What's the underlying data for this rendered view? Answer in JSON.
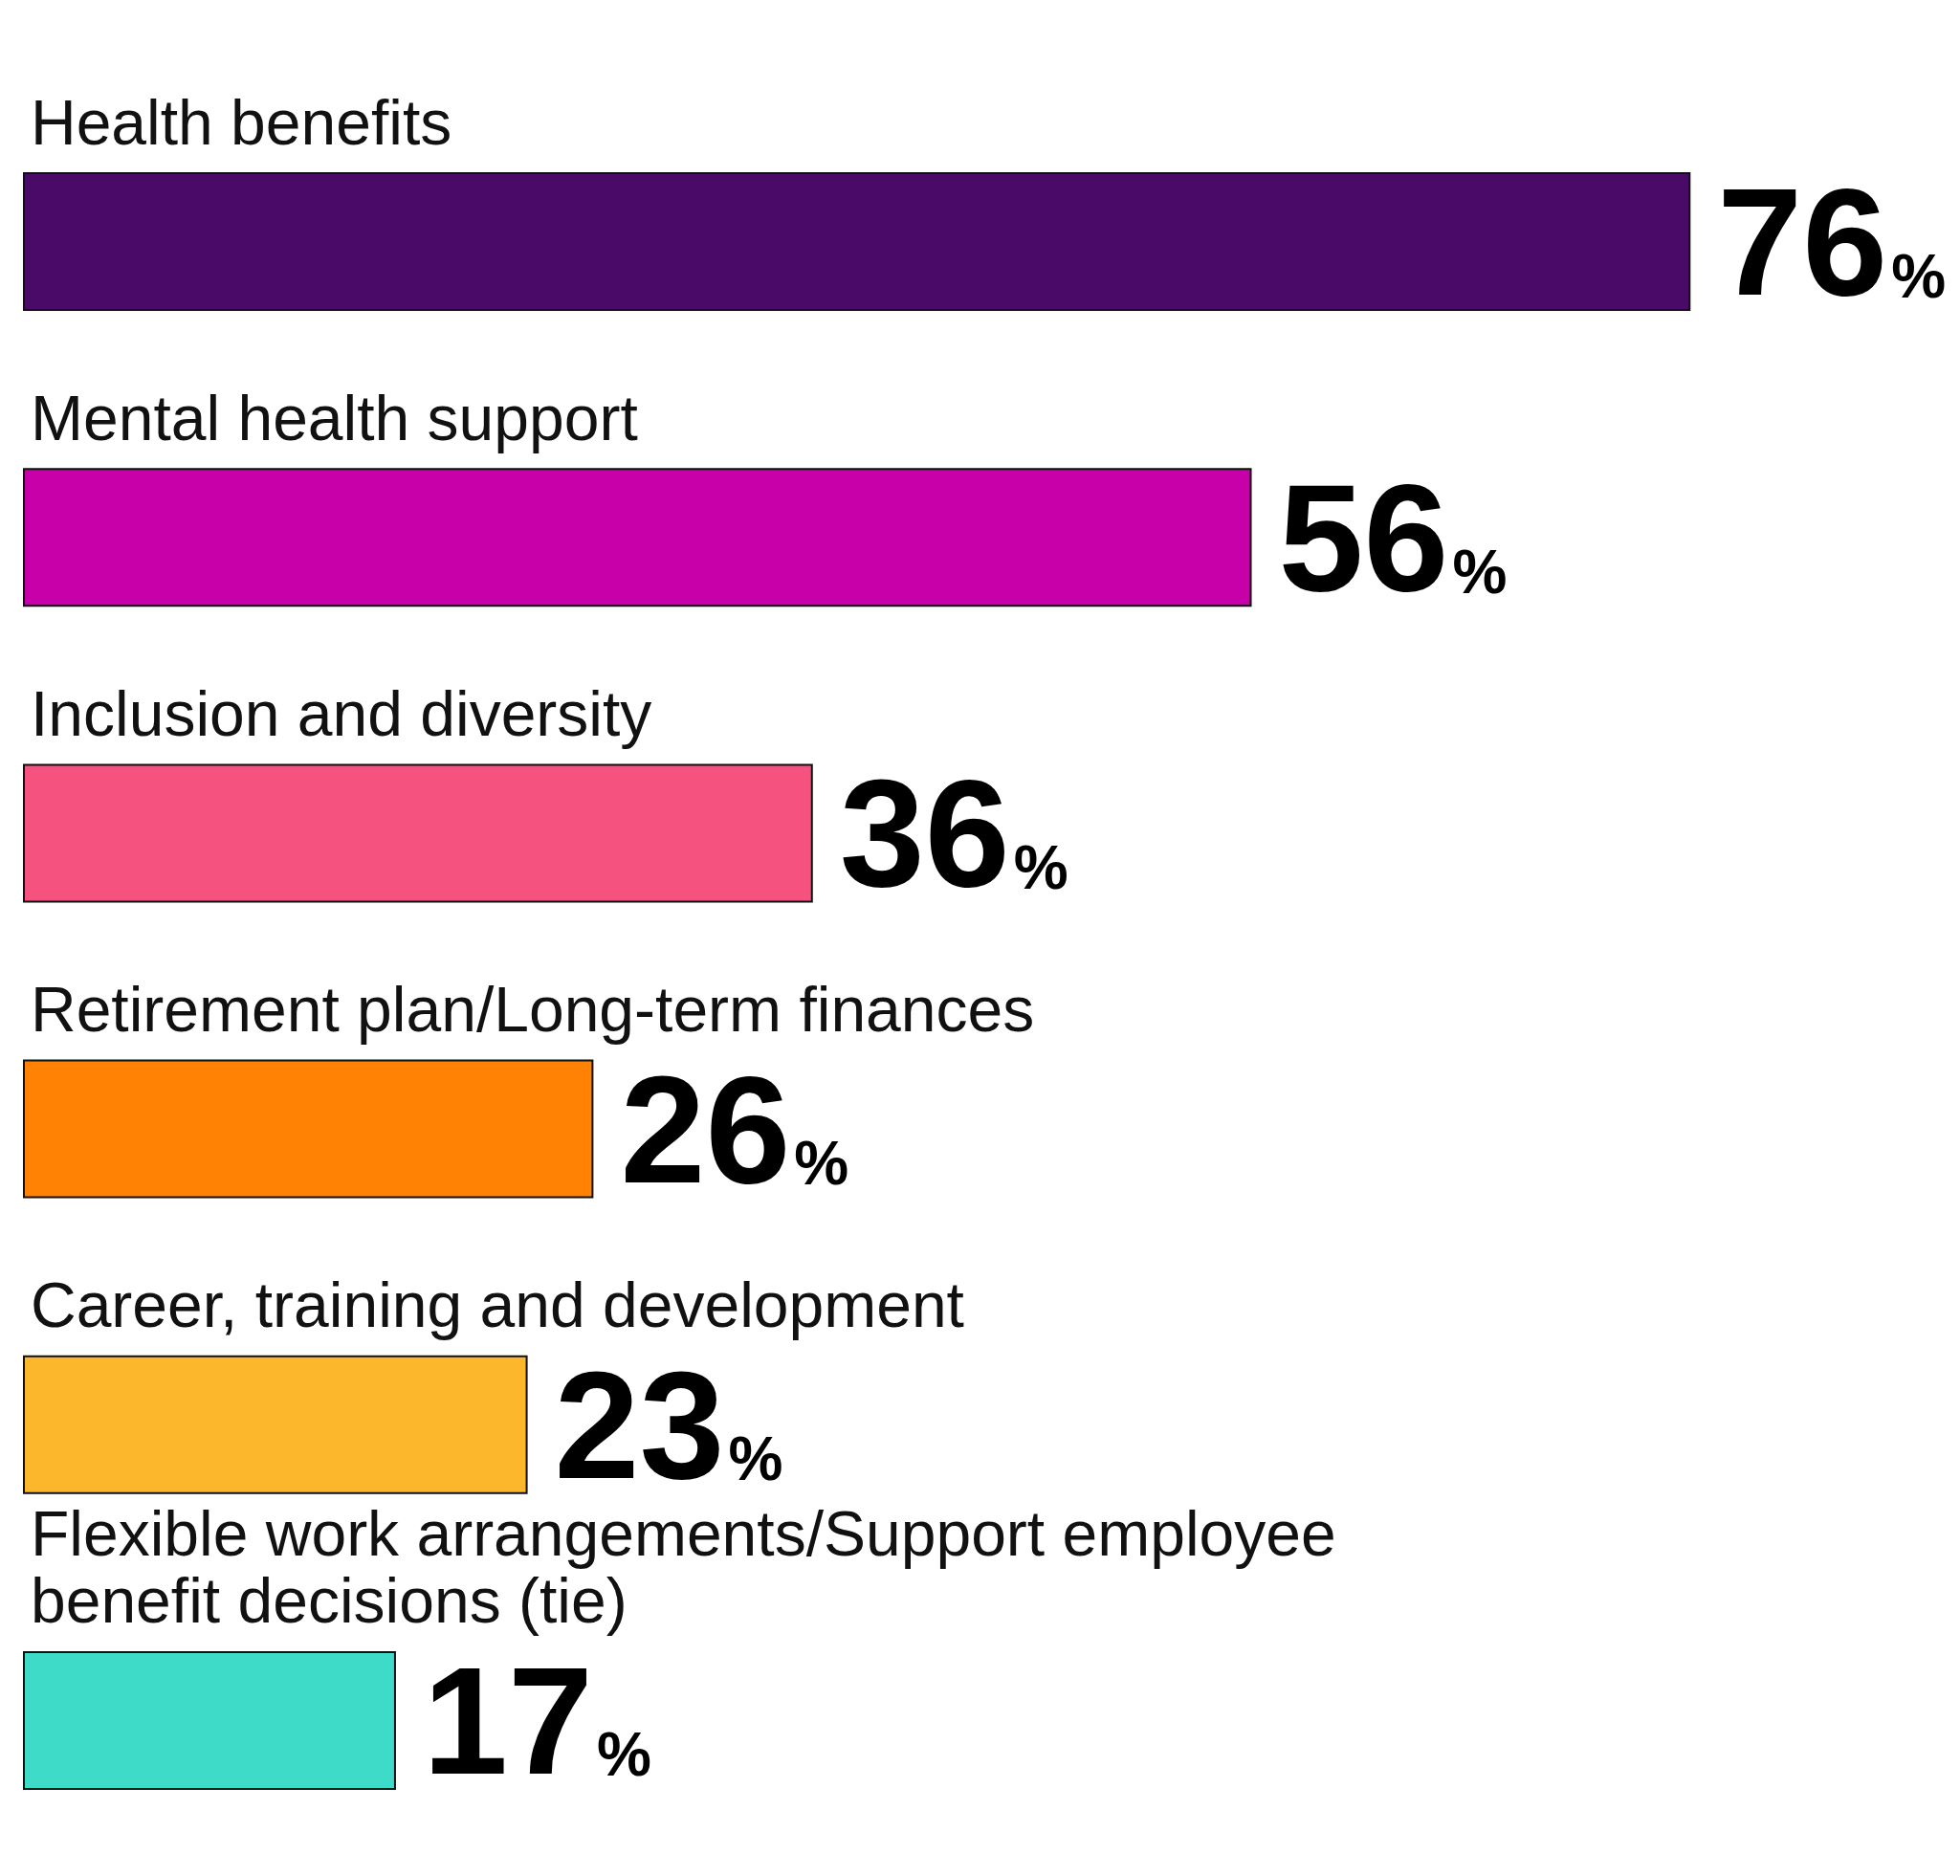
{
  "chart_data": {
    "type": "bar",
    "orientation": "horizontal",
    "categories": [
      "Health benefits",
      "Mental health support",
      "Inclusion and diversity",
      "Retirement plan/Long-term finances",
      "Career, training and development",
      "Flexible work arrangements/Support employee benefit decisions (tie)"
    ],
    "values": [
      76,
      56,
      36,
      26,
      23,
      17
    ],
    "value_labels": [
      "76%",
      "56%",
      "36%",
      "26%",
      "23%",
      "17%"
    ],
    "colors": [
      "#4a0a68",
      "#c800aa",
      "#f55280",
      "#ff8205",
      "#fdb72c",
      "#3ddbc8"
    ]
  }
}
